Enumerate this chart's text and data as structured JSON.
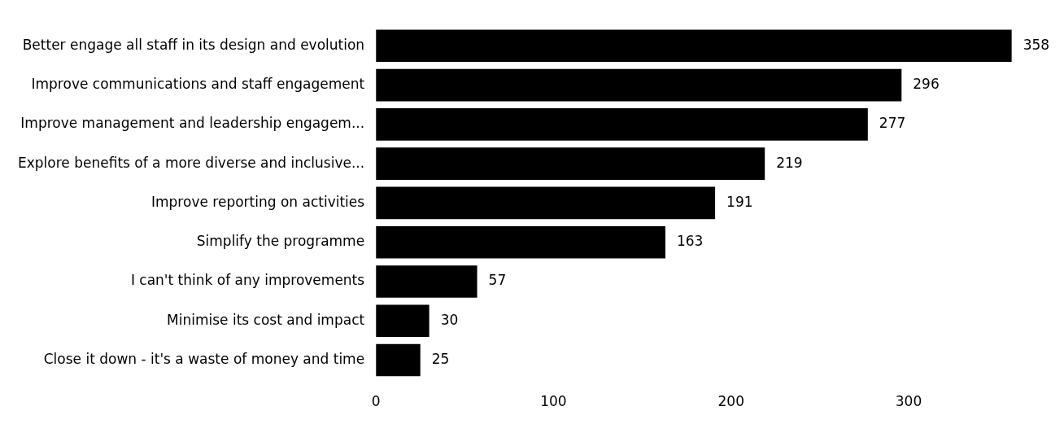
{
  "chart_data": {
    "type": "bar",
    "orientation": "horizontal",
    "categories": [
      "Better engage all staff in its design and evolution",
      "Improve communications and staff engagement",
      "Improve management and leadership engagem...",
      "Explore benefits of a more diverse and inclusive...",
      "Improve reporting on activities",
      "Simplify the programme",
      "I can't think of any improvements",
      "Minimise its cost and impact",
      "Close it down - it's a waste of money and time"
    ],
    "values": [
      358,
      296,
      277,
      219,
      191,
      163,
      57,
      30,
      25
    ],
    "color": "#000000",
    "xlim": [
      0,
      360
    ],
    "xticks": [
      0,
      100,
      200,
      300
    ],
    "data_labels": true,
    "grid": false,
    "legend": false
  }
}
